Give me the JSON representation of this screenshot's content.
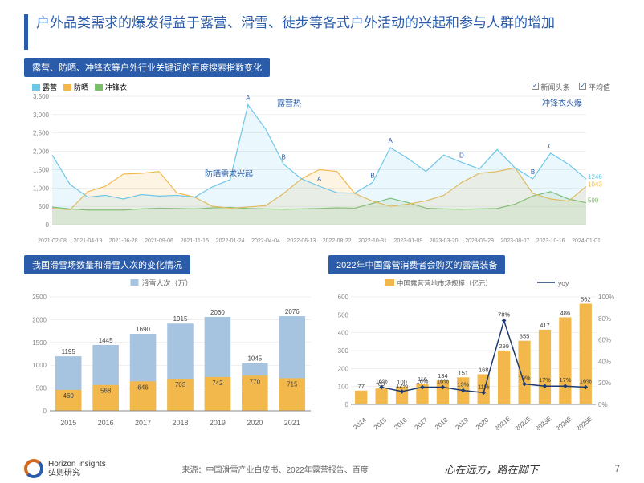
{
  "title": "户外品类需求的爆发得益于露营、滑雪、徒步等各式户外活动的兴起和参与人群的增加",
  "colors": {
    "brand_blue": "#2a5caa",
    "chart_bg": "#ffffff",
    "grid": "#e0e0e0",
    "axis_text": "#666666",
    "series1": "#6fc7e8",
    "series2": "#f2b84b",
    "series3": "#7bbf6a",
    "bar_light_blue": "#a6c4e0",
    "bar_orange": "#f2b84b",
    "bar_yellow": "#f2b84b",
    "line_navy": "#1f3a6e"
  },
  "chart_top": {
    "title": "露营、防晒、冲锋衣等户外行业关键词的百度搜索指数变化",
    "legend": [
      {
        "label": "露营",
        "color": "#6fc7e8"
      },
      {
        "label": "防晒",
        "color": "#f2b84b"
      },
      {
        "label": "冲锋衣",
        "color": "#7bbf6a"
      }
    ],
    "legend_right": [
      "新闻头条",
      "平均值"
    ],
    "annotations": {
      "camping_hot": "露营热",
      "sun_demand": "防晒需求兴起",
      "jacket_hot": "冲锋衣火爆"
    },
    "x_labels": [
      "2021-02-08",
      "2021-04-19",
      "2021-06-28",
      "2021-09-06",
      "2021-11-15",
      "2022-01-24",
      "2022-04-04",
      "2022-06-13",
      "2022-08-22",
      "2022-10-31",
      "2023-01-09",
      "2023-03-20",
      "2023-05-29",
      "2023-08-07",
      "2023-10-16",
      "2024-01-01"
    ],
    "y_ticks": [
      0,
      500,
      1000,
      1500,
      2000,
      2500,
      3000,
      3500
    ],
    "end_values": {
      "camping": 1246,
      "sun": 1043,
      "jacket": 599
    },
    "camping": [
      1900,
      1100,
      750,
      800,
      700,
      820,
      780,
      800,
      750,
      1030,
      1230,
      3270,
      2600,
      1650,
      1250,
      1050,
      870,
      860,
      1150,
      2100,
      1800,
      1450,
      1900,
      1700,
      1520,
      2050,
      1550,
      1250,
      1950,
      1650,
      1246
    ],
    "sun": [
      450,
      405,
      900,
      1050,
      1380,
      1400,
      1450,
      870,
      750,
      500,
      450,
      480,
      520,
      850,
      1250,
      1500,
      1450,
      850,
      640,
      500,
      560,
      650,
      800,
      1150,
      1400,
      1450,
      1550,
      850,
      700,
      640,
      1043
    ],
    "jacket": [
      480,
      430,
      400,
      400,
      400,
      430,
      450,
      440,
      430,
      460,
      470,
      440,
      430,
      420,
      430,
      440,
      460,
      450,
      580,
      720,
      600,
      450,
      430,
      420,
      430,
      440,
      560,
      780,
      900,
      700,
      599
    ],
    "markers": [
      {
        "label": "A",
        "x_idx": 11
      },
      {
        "label": "B",
        "x_idx": 13
      },
      {
        "label": "A",
        "x_idx": 15
      },
      {
        "label": "B",
        "x_idx": 18
      },
      {
        "label": "A",
        "x_idx": 19
      },
      {
        "label": "D",
        "x_idx": 23
      },
      {
        "label": "B",
        "x_idx": 27
      },
      {
        "label": "C",
        "x_idx": 28
      }
    ]
  },
  "chart_left": {
    "title": "我国滑雪场数量和滑雪人次的变化情况",
    "legend": [
      {
        "label": "滑雪人次（万）",
        "color": "#a6c4e0"
      }
    ],
    "categories": [
      "2015",
      "2016",
      "2017",
      "2018",
      "2019",
      "2020",
      "2021"
    ],
    "inner_values": [
      460,
      568,
      646,
      703,
      742,
      770,
      715
    ],
    "outer_values": [
      1195,
      1445,
      1690,
      1915,
      2060,
      1045,
      2076
    ],
    "inner_color": "#f2b84b",
    "outer_color": "#a6c4e0",
    "y_ticks": [
      0,
      500,
      1000,
      1500,
      2000,
      2500
    ],
    "ylim": [
      0,
      2500
    ]
  },
  "chart_right": {
    "title": "2022年中国露营消费者会购买的露营装备",
    "legend": [
      {
        "label": "中国露营营地市场规模（亿元）",
        "color": "#f2b84b",
        "type": "bar"
      },
      {
        "label": "yoy",
        "color": "#1f3a6e",
        "type": "line"
      }
    ],
    "categories": [
      "2014",
      "2015",
      "2016",
      "2017",
      "2018",
      "2019",
      "2020",
      "2021E",
      "2022E",
      "2023E",
      "2024E",
      "2025E"
    ],
    "bar_values": [
      77,
      89,
      100,
      116,
      134,
      151,
      168,
      299,
      355,
      417,
      486,
      562
    ],
    "line_values": [
      null,
      16,
      12,
      16,
      16,
      13,
      11,
      78,
      19,
      17,
      17,
      16
    ],
    "bar_color": "#f2b84b",
    "line_color": "#1f3a6e",
    "y_left_ticks": [
      0,
      100,
      200,
      300,
      400,
      500,
      600
    ],
    "y_right_ticks": [
      0,
      20,
      40,
      60,
      80,
      100
    ],
    "y_left_lim": [
      0,
      600
    ],
    "y_right_lim": [
      0,
      100
    ]
  },
  "footer": {
    "brand_en": "Horizon Insights",
    "brand_cn": "弘则研究",
    "source": "来源：中国滑雪产业白皮书、2022年露营报告、百度",
    "motto": "心在远方，路在脚下",
    "page": "7"
  }
}
